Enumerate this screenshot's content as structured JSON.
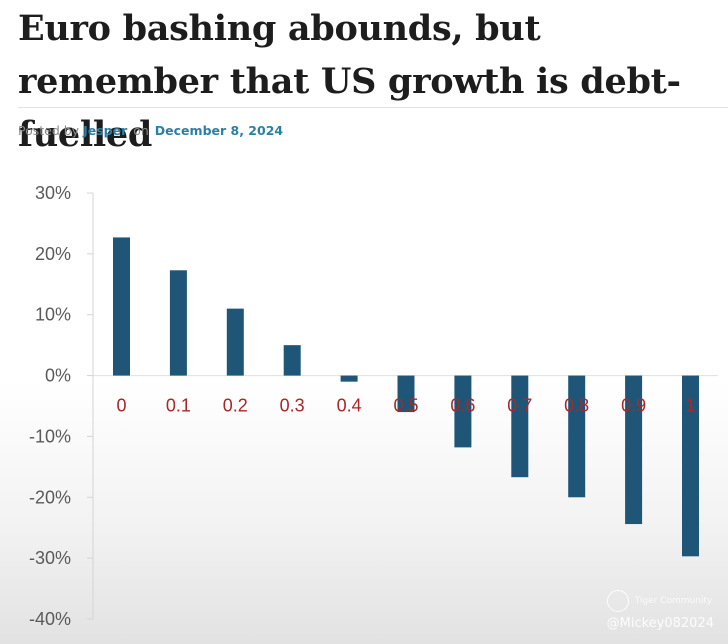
{
  "article": {
    "title": "Euro bashing abounds, but remember that US growth is debt-fuelled",
    "byline": {
      "posted_by": "Posted by",
      "author": "Jesper",
      "on": "on",
      "date": "December 8, 2024"
    }
  },
  "chart_data": {
    "type": "bar",
    "title": "",
    "xlabel": "",
    "ylabel": "",
    "categories": [
      "0",
      "0.1",
      "0.2",
      "0.3",
      "0.4",
      "0.5",
      "0.6",
      "0.7",
      "0.8",
      "0.9",
      "1"
    ],
    "values": [
      22.7,
      17.3,
      11.0,
      5.0,
      -1.0,
      -6.0,
      -11.8,
      -16.7,
      -20.0,
      -24.4,
      -29.7
    ],
    "unit": "%",
    "ylim": [
      -40,
      30
    ],
    "yticks": [
      "30%",
      "20%",
      "10%",
      "0%",
      "-10%",
      "-20%",
      "-30%",
      "-40%"
    ],
    "ytick_values": [
      30,
      20,
      10,
      0,
      -10,
      -20,
      -30,
      -40
    ],
    "grid": false,
    "bar_color": "#1f5678",
    "category_label_color": "#a82828"
  },
  "watermark": {
    "icon": "tiger-logo-icon",
    "brand": "Tiger Community",
    "handle": "@Mickey082024"
  }
}
